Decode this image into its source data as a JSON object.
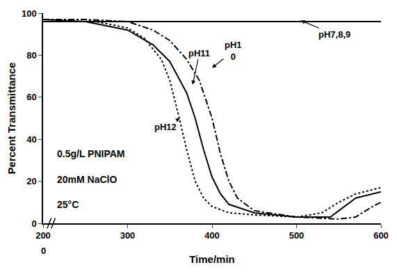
{
  "chart_data": {
    "type": "line",
    "xlabel": "Time/min",
    "ylabel": "Percent Transmittance",
    "xlim": [
      200,
      600
    ],
    "xticks": [
      200,
      300,
      400,
      500,
      600
    ],
    "ylim": [
      0,
      100
    ],
    "yticks": [
      0,
      20,
      40,
      60,
      80,
      100
    ],
    "grid": false,
    "annotations": [
      "0.5g/L PNIPAM",
      "20mM NaClO",
      "25°C",
      "0"
    ],
    "series": [
      {
        "name": "pH7,8,9",
        "color": "#000000",
        "line_style": "solid",
        "x": [
          200,
          300,
          400,
          500,
          600
        ],
        "values": [
          96,
          96,
          96,
          96,
          96
        ]
      },
      {
        "name": "pH12",
        "color": "#000000",
        "line_style": "dot",
        "x": [
          200,
          250,
          300,
          320,
          340,
          350,
          360,
          370,
          380,
          390,
          400,
          420,
          450,
          500,
          530,
          550,
          570,
          600
        ],
        "values": [
          97,
          97,
          93,
          88,
          78,
          68,
          52,
          35,
          20,
          12,
          8,
          5,
          4,
          3,
          5,
          10,
          14,
          17
        ]
      },
      {
        "name": "pH11",
        "color": "#000000",
        "line_style": "solid",
        "x": [
          200,
          250,
          300,
          330,
          350,
          370,
          380,
          390,
          400,
          410,
          420,
          450,
          500,
          540,
          550,
          570,
          600
        ],
        "values": [
          97,
          96,
          92,
          85,
          77,
          62,
          50,
          35,
          22,
          14,
          9,
          5,
          3,
          3,
          6,
          12,
          15
        ]
      },
      {
        "name": "pH1\n0",
        "color": "#000000",
        "line_style": "dashdot",
        "x": [
          200,
          250,
          300,
          330,
          350,
          370,
          385,
          400,
          410,
          420,
          430,
          450,
          500,
          550,
          570,
          590,
          600
        ],
        "values": [
          97,
          97,
          96,
          92,
          87,
          78,
          68,
          50,
          33,
          20,
          12,
          6,
          3,
          2,
          3,
          8,
          10
        ]
      }
    ]
  }
}
